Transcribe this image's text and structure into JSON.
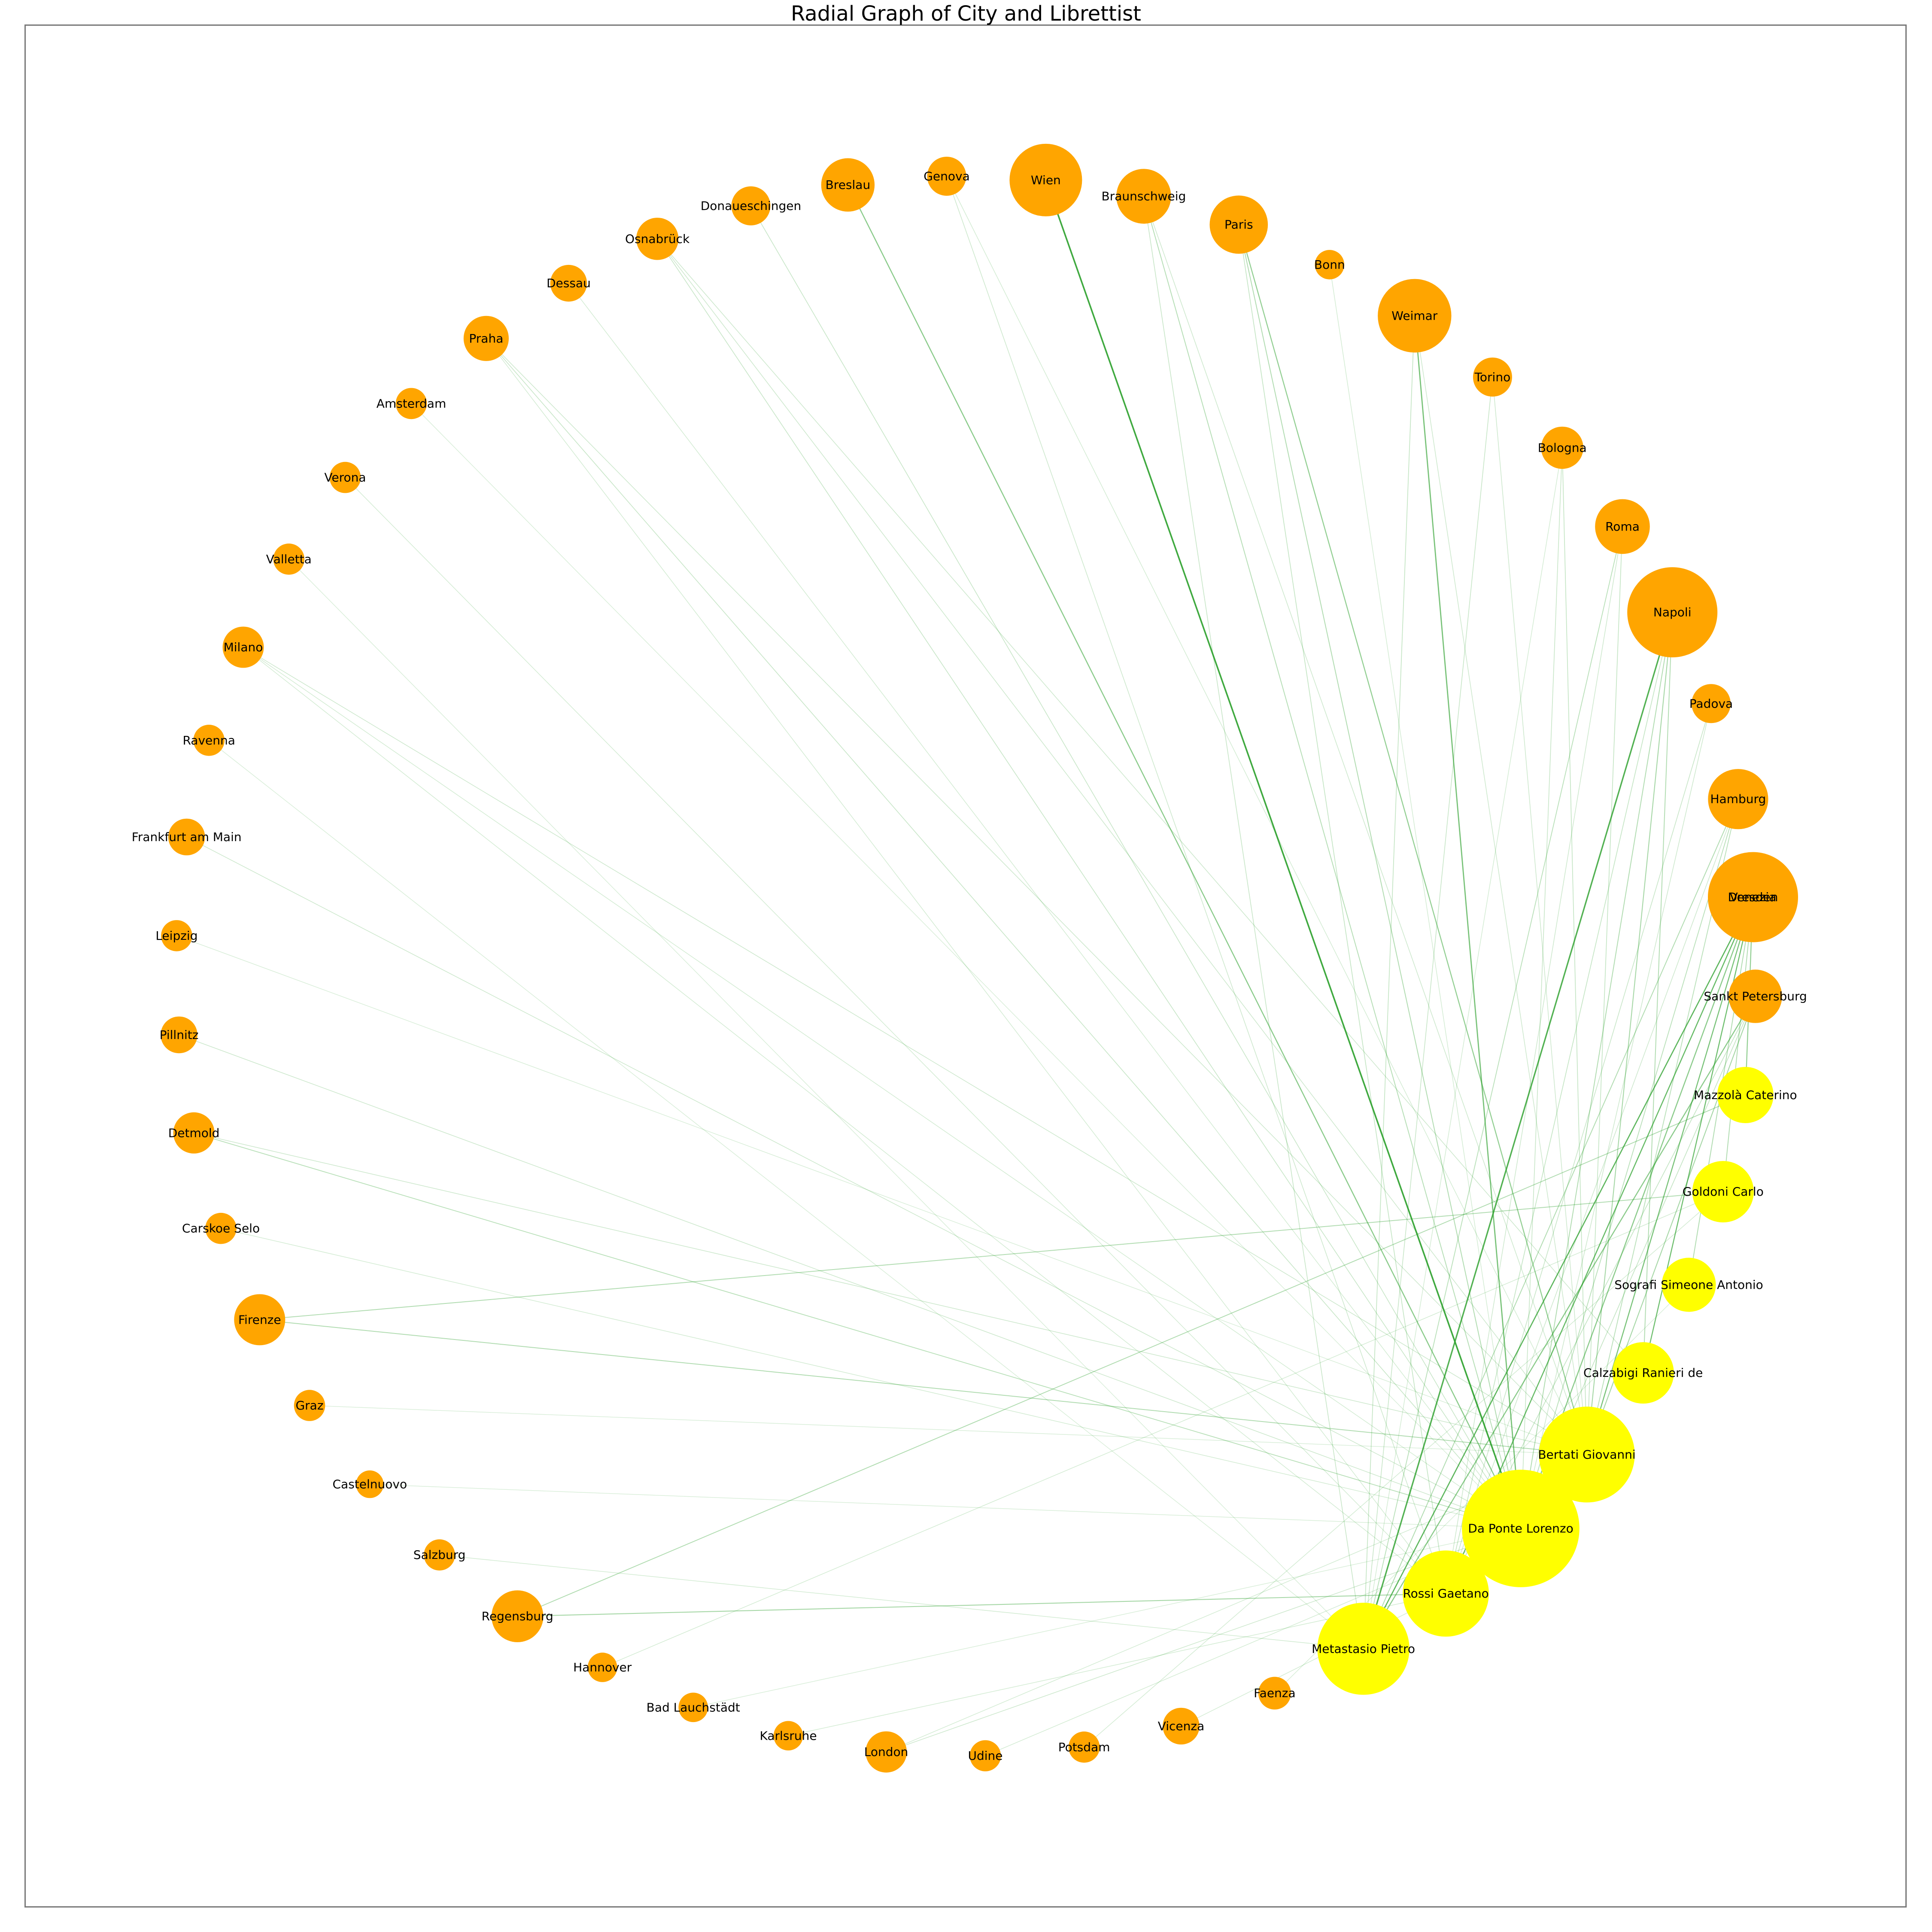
{
  "chart_data": {
    "type": "network",
    "title": "Radial Graph of City and Librettist",
    "layout": "radial",
    "colors": {
      "city": "#ffa500",
      "librettist": "#ffff00",
      "edge": "#2ca02c"
    },
    "node_size_meaning": "relative degree (0-1 scale)",
    "nodes": [
      {
        "id": "Venezia",
        "group": "city",
        "size": 1.0
      },
      {
        "id": "Sankt Petersburg",
        "group": "city",
        "size": 0.28
      },
      {
        "id": "Mazzolà Caterino",
        "group": "librettist",
        "size": 0.32
      },
      {
        "id": "Goldoni Carlo",
        "group": "librettist",
        "size": 0.4
      },
      {
        "id": "Sografi Simeone Antonio",
        "group": "librettist",
        "size": 0.29
      },
      {
        "id": "Calzabigi Ranieri de",
        "group": "librettist",
        "size": 0.4
      },
      {
        "id": "Bertati Giovanni",
        "group": "librettist",
        "size": 1.15
      },
      {
        "id": "Da Ponte Lorenzo",
        "group": "librettist",
        "size": 1.82
      },
      {
        "id": "Rossi Gaetano",
        "group": "librettist",
        "size": 0.9
      },
      {
        "id": "Metastasio Pietro",
        "group": "librettist",
        "size": 1.05
      },
      {
        "id": "Faenza",
        "group": "city",
        "size": 0.07
      },
      {
        "id": "Vicenza",
        "group": "city",
        "size": 0.1
      },
      {
        "id": "Potsdam",
        "group": "city",
        "size": 0.06
      },
      {
        "id": "Udine",
        "group": "city",
        "size": 0.06
      },
      {
        "id": "London",
        "group": "city",
        "size": 0.14
      },
      {
        "id": "Karlsruhe",
        "group": "city",
        "size": 0.05
      },
      {
        "id": "Bad Lauchstädt",
        "group": "city",
        "size": 0.05
      },
      {
        "id": "Hannover",
        "group": "city",
        "size": 0.05
      },
      {
        "id": "Regensburg",
        "group": "city",
        "size": 0.26
      },
      {
        "id": "Salzburg",
        "group": "city",
        "size": 0.06
      },
      {
        "id": "Castelnuovo",
        "group": "city",
        "size": 0.04
      },
      {
        "id": "Graz",
        "group": "city",
        "size": 0.06
      },
      {
        "id": "Firenze",
        "group": "city",
        "size": 0.25
      },
      {
        "id": "Carskoe Selo",
        "group": "city",
        "size": 0.06
      },
      {
        "id": "Detmold",
        "group": "city",
        "size": 0.14
      },
      {
        "id": "Pillnitz",
        "group": "city",
        "size": 0.1
      },
      {
        "id": "Leipzig",
        "group": "city",
        "size": 0.06
      },
      {
        "id": "Frankfurt am Main",
        "group": "city",
        "size": 0.1
      },
      {
        "id": "Ravenna",
        "group": "city",
        "size": 0.06
      },
      {
        "id": "Milano",
        "group": "city",
        "size": 0.14
      },
      {
        "id": "Valletta",
        "group": "city",
        "size": 0.06
      },
      {
        "id": "Verona",
        "group": "city",
        "size": 0.06
      },
      {
        "id": "Amsterdam",
        "group": "city",
        "size": 0.06
      },
      {
        "id": "Praha",
        "group": "city",
        "size": 0.18
      },
      {
        "id": "Dessau",
        "group": "city",
        "size": 0.1
      },
      {
        "id": "Osnabrück",
        "group": "city",
        "size": 0.15
      },
      {
        "id": "Donaueschingen",
        "group": "city",
        "size": 0.12
      },
      {
        "id": "Breslau",
        "group": "city",
        "size": 0.28
      },
      {
        "id": "Genova",
        "group": "city",
        "size": 0.12
      },
      {
        "id": "Wien",
        "group": "city",
        "size": 0.6
      },
      {
        "id": "Braunschweig",
        "group": "city",
        "size": 0.3
      },
      {
        "id": "Paris",
        "group": "city",
        "size": 0.35
      },
      {
        "id": "Bonn",
        "group": "city",
        "size": 0.05
      },
      {
        "id": "Weimar",
        "group": "city",
        "size": 0.62
      },
      {
        "id": "Torino",
        "group": "city",
        "size": 0.12
      },
      {
        "id": "Bologna",
        "group": "city",
        "size": 0.15
      },
      {
        "id": "Roma",
        "group": "city",
        "size": 0.3
      },
      {
        "id": "Napoli",
        "group": "city",
        "size": 1.0
      },
      {
        "id": "Padova",
        "group": "city",
        "size": 0.12
      },
      {
        "id": "Hamburg",
        "group": "city",
        "size": 0.38
      },
      {
        "id": "Dresden",
        "group": "city",
        "size": 0.44
      }
    ],
    "edges": [
      [
        "Wien",
        "Da Ponte Lorenzo",
        0.9
      ],
      [
        "Napoli",
        "Metastasio Pietro",
        0.8
      ],
      [
        "Weimar",
        "Da Ponte Lorenzo",
        0.6
      ],
      [
        "Breslau",
        "Da Ponte Lorenzo",
        0.5
      ],
      [
        "Paris",
        "Bertati Giovanni",
        0.45
      ],
      [
        "Dresden",
        "Calzabigi Ranieri de",
        0.5
      ],
      [
        "Venezia",
        "Metastasio Pietro",
        0.6
      ],
      [
        "Venezia",
        "Rossi Gaetano",
        0.55
      ],
      [
        "Venezia",
        "Bertati Giovanni",
        0.5
      ],
      [
        "Venezia",
        "Da Ponte Lorenzo",
        0.5
      ],
      [
        "Venezia",
        "Mazzolà Caterino",
        0.45
      ],
      [
        "Sankt Petersburg",
        "Metastasio Pietro",
        0.5
      ],
      [
        "Sankt Petersburg",
        "Bertati Giovanni",
        0.35
      ],
      [
        "Napoli",
        "Bertati Giovanni",
        0.35
      ],
      [
        "Napoli",
        "Calzabigi Ranieri de",
        0.3
      ],
      [
        "Napoli",
        "Da Ponte Lorenzo",
        0.3
      ],
      [
        "Regensburg",
        "Rossi Gaetano",
        0.35
      ],
      [
        "Regensburg",
        "Mazzolà Caterino",
        0.3
      ],
      [
        "Firenze",
        "Bertati Giovanni",
        0.3
      ],
      [
        "Firenze",
        "Goldoni Carlo",
        0.3
      ],
      [
        "Hamburg",
        "Metastasio Pietro",
        0.3
      ],
      [
        "Hamburg",
        "Da Ponte Lorenzo",
        0.25
      ],
      [
        "Hamburg",
        "Bertati Giovanni",
        0.25
      ],
      [
        "Dresden",
        "Metastasio Pietro",
        0.3
      ],
      [
        "Dresden",
        "Rossi Gaetano",
        0.25
      ],
      [
        "Roma",
        "Metastasio Pietro",
        0.25
      ],
      [
        "Roma",
        "Bertati Giovanni",
        0.2
      ],
      [
        "Bologna",
        "Bertati Giovanni",
        0.2
      ],
      [
        "Bologna",
        "Da Ponte Lorenzo",
        0.18
      ],
      [
        "Torino",
        "Metastasio Pietro",
        0.18
      ],
      [
        "Torino",
        "Bertati Giovanni",
        0.15
      ],
      [
        "Padova",
        "Rossi Gaetano",
        0.18
      ],
      [
        "Padova",
        "Da Ponte Lorenzo",
        0.15
      ],
      [
        "Braunschweig",
        "Da Ponte Lorenzo",
        0.28
      ],
      [
        "Braunschweig",
        "Metastasio Pietro",
        0.18
      ],
      [
        "Braunschweig",
        "Bertati Giovanni",
        0.15
      ],
      [
        "Paris",
        "Da Ponte Lorenzo",
        0.3
      ],
      [
        "Paris",
        "Rossi Gaetano",
        0.2
      ],
      [
        "Weimar",
        "Metastasio Pietro",
        0.2
      ],
      [
        "Weimar",
        "Bertati Giovanni",
        0.15
      ],
      [
        "Bonn",
        "Da Ponte Lorenzo",
        0.12
      ],
      [
        "Genova",
        "Rossi Gaetano",
        0.15
      ],
      [
        "Genova",
        "Bertati Giovanni",
        0.12
      ],
      [
        "Donaueschingen",
        "Da Ponte Lorenzo",
        0.18
      ],
      [
        "Osnabrück",
        "Da Ponte Lorenzo",
        0.18
      ],
      [
        "Osnabrück",
        "Bertati Giovanni",
        0.15
      ],
      [
        "Osnabrück",
        "Calzabigi Ranieri de",
        0.15
      ],
      [
        "Dessau",
        "Da Ponte Lorenzo",
        0.12
      ],
      [
        "Praha",
        "Da Ponte Lorenzo",
        0.18
      ],
      [
        "Praha",
        "Bertati Giovanni",
        0.15
      ],
      [
        "Praha",
        "Rossi Gaetano",
        0.12
      ],
      [
        "Amsterdam",
        "Da Ponte Lorenzo",
        0.1
      ],
      [
        "Verona",
        "Rossi Gaetano",
        0.12
      ],
      [
        "Valletta",
        "Metastasio Pietro",
        0.1
      ],
      [
        "Milano",
        "Bertati Giovanni",
        0.15
      ],
      [
        "Milano",
        "Da Ponte Lorenzo",
        0.12
      ],
      [
        "Milano",
        "Rossi Gaetano",
        0.12
      ],
      [
        "Ravenna",
        "Metastasio Pietro",
        0.1
      ],
      [
        "Frankfurt am Main",
        "Da Ponte Lorenzo",
        0.15
      ],
      [
        "Leipzig",
        "Bertati Giovanni",
        0.1
      ],
      [
        "Pillnitz",
        "Da Ponte Lorenzo",
        0.15
      ],
      [
        "Detmold",
        "Da Ponte Lorenzo",
        0.25
      ],
      [
        "Detmold",
        "Bertati Giovanni",
        0.15
      ],
      [
        "Carskoe Selo",
        "Da Ponte Lorenzo",
        0.12
      ],
      [
        "Graz",
        "Bertati Giovanni",
        0.1
      ],
      [
        "Castelnuovo",
        "Da Ponte Lorenzo",
        0.1
      ],
      [
        "Salzburg",
        "Metastasio Pietro",
        0.12
      ],
      [
        "Hannover",
        "Goldoni Carlo",
        0.12
      ],
      [
        "Bad Lauchstädt",
        "Da Ponte Lorenzo",
        0.1
      ],
      [
        "Karlsruhe",
        "Rossi Gaetano",
        0.12
      ],
      [
        "London",
        "Da Ponte Lorenzo",
        0.15
      ],
      [
        "London",
        "Bertati Giovanni",
        0.12
      ],
      [
        "Udine",
        "Da Ponte Lorenzo",
        0.12
      ],
      [
        "Potsdam",
        "Goldoni Carlo",
        0.12
      ],
      [
        "Vicenza",
        "Rossi Gaetano",
        0.12
      ],
      [
        "Faenza",
        "Sografi Simeone Antonio",
        0.1
      ],
      [
        "Venezia",
        "Goldoni Carlo",
        0.3
      ],
      [
        "Venezia",
        "Sografi Simeone Antonio",
        0.3
      ],
      [
        "Venezia",
        "Calzabigi Ranieri de",
        0.25
      ],
      [
        "Sankt Petersburg",
        "Da Ponte Lorenzo",
        0.2
      ],
      [
        "Sankt Petersburg",
        "Rossi Gaetano",
        0.2
      ],
      [
        "Napoli",
        "Rossi Gaetano",
        0.2
      ],
      [
        "Hamburg",
        "Rossi Gaetano",
        0.15
      ],
      [
        "Dresden",
        "Bertati Giovanni",
        0.15
      ],
      [
        "Roma",
        "Rossi Gaetano",
        0.15
      ],
      [
        "Bologna",
        "Metastasio Pietro",
        0.12
      ]
    ]
  }
}
